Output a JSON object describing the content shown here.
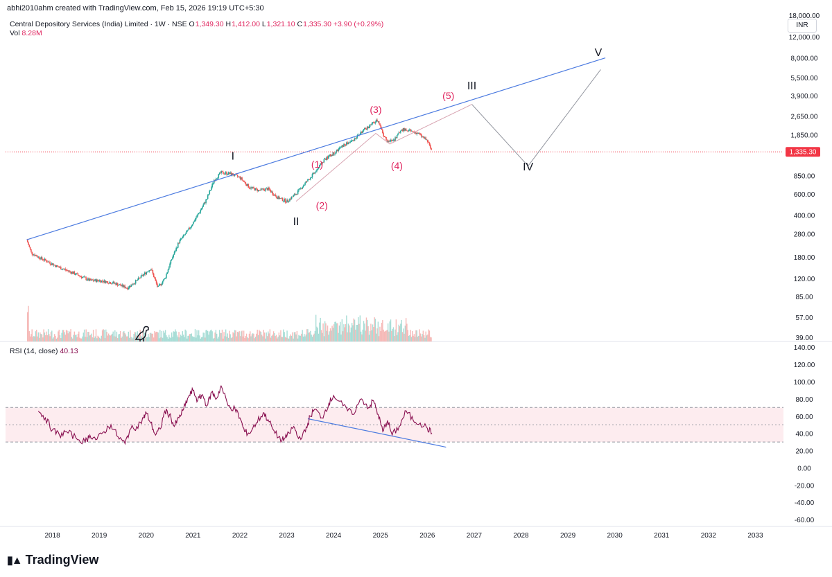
{
  "header": {
    "credit": "abhi2010ahm created with TradingView.com, Feb 15, 2026 19:19 UTC+5:30",
    "symbol": "Central Depository Services (India) Limited · 1W · NSE",
    "ohlc": [
      {
        "label": "O",
        "value": "1,349.30"
      },
      {
        "label": "H",
        "value": "1,412.00"
      },
      {
        "label": "L",
        "value": "1,321.10"
      },
      {
        "label": "C",
        "value": "1,335.30"
      }
    ],
    "change": "+3.90 (+0.29%)",
    "vol_label": "Vol",
    "vol_value": "8.28M",
    "currency": "INR",
    "last_price_badge": "1,335.30"
  },
  "rsi": {
    "label": "RSI (14, close)",
    "value": "40.13"
  },
  "branding": {
    "logo": "TradingView"
  },
  "colors": {
    "up": "#26a69a",
    "down": "#ef5350",
    "trendline": "#4c7be0",
    "rsi_line": "#880e4f",
    "wave_labels": "#e0245e",
    "price_badge": "#f23645"
  },
  "chart_data": [
    {
      "type": "line",
      "title": "",
      "y_scale": "log",
      "ylim": [
        36,
        19000
      ],
      "xlim": [
        2017.0,
        2033.6
      ],
      "y_tick_labels": [
        "39.00",
        "57.00",
        "85.00",
        "120.00",
        "180.00",
        "280.00",
        "400.00",
        "600.00",
        "850.00",
        "1,850.00",
        "2,650.00",
        "3,900.00",
        "5,500.00",
        "8,000.00",
        "12,000.00",
        "18,000.00"
      ],
      "x_tick_labels": [
        "2018",
        "2019",
        "2020",
        "2021",
        "2022",
        "2023",
        "2024",
        "2025",
        "2026",
        "2027",
        "2028",
        "2029",
        "2030",
        "2031",
        "2032",
        "2033"
      ],
      "series": [
        {
          "x": [
            2017.45,
            2017.55,
            2017.7,
            2017.9,
            2018.1,
            2018.3,
            2018.5,
            2018.8,
            2019.0,
            2019.3,
            2019.6,
            2019.8,
            2020.1,
            2020.25,
            2020.4,
            2020.55,
            2020.7,
            2020.9,
            2021.1,
            2021.3,
            2021.45,
            2021.6,
            2021.8,
            2022.0,
            2022.2,
            2022.4,
            2022.6,
            2022.8,
            2023.0,
            2023.2,
            2023.4,
            2023.6,
            2023.8,
            2024.0,
            2024.2,
            2024.4,
            2024.6,
            2024.8,
            2024.95,
            2025.05,
            2025.15,
            2025.3,
            2025.45,
            2025.6,
            2025.8,
            2026.0,
            2026.1
          ],
          "y": [
            250,
            195,
            180,
            165,
            150,
            140,
            130,
            115,
            115,
            110,
            100,
            115,
            145,
            100,
            120,
            175,
            240,
            300,
            400,
            550,
            780,
            900,
            880,
            820,
            680,
            640,
            660,
            560,
            520,
            600,
            740,
            900,
            1150,
            1300,
            1500,
            1650,
            1950,
            2250,
            2450,
            1900,
            1600,
            1700,
            2050,
            2000,
            1900,
            1650,
            1335
          ]
        }
      ],
      "annotations": [
        {
          "text": "I",
          "x": 2021.85,
          "y": 1150
        },
        {
          "text": "II",
          "x": 2023.2,
          "y": 330
        },
        {
          "text": "III",
          "x": 2026.95,
          "y": 4400
        },
        {
          "text": "IV",
          "x": 2028.15,
          "y": 940
        },
        {
          "text": "V",
          "x": 2029.65,
          "y": 8300
        },
        {
          "text": "(1)",
          "x": 2023.65,
          "y": 990
        },
        {
          "text": "(2)",
          "x": 2023.75,
          "y": 450
        },
        {
          "text": "(3)",
          "x": 2024.9,
          "y": 2800
        },
        {
          "text": "(4)",
          "x": 2025.35,
          "y": 960
        },
        {
          "text": "(5)",
          "x": 2026.45,
          "y": 3650
        }
      ]
    },
    {
      "type": "line",
      "title": "",
      "ylim": [
        -68,
        145
      ],
      "y_tick_labels": [
        "-60.00",
        "-40.00",
        "-20.00",
        "0.00",
        "20.00",
        "40.00",
        "60.00",
        "80.00",
        "100.00",
        "120.00",
        "140.00"
      ],
      "series": [
        {
          "x": [
            2017.7,
            2017.85,
            2018.0,
            2018.15,
            2018.3,
            2018.5,
            2018.7,
            2018.8,
            2018.95,
            2019.1,
            2019.25,
            2019.4,
            2019.55,
            2019.65,
            2019.8,
            2019.95,
            2020.0,
            2020.1,
            2020.2,
            2020.3,
            2020.4,
            2020.5,
            2020.6,
            2020.7,
            2020.8,
            2020.9,
            2021.0,
            2021.1,
            2021.2,
            2021.3,
            2021.4,
            2021.5,
            2021.6,
            2021.75,
            2021.9,
            2022.0,
            2022.1,
            2022.2,
            2022.35,
            2022.5,
            2022.6,
            2022.75,
            2022.9,
            2023.0,
            2023.15,
            2023.25,
            2023.4,
            2023.5,
            2023.6,
            2023.75,
            2023.9,
            2024.0,
            2024.2,
            2024.4,
            2024.6,
            2024.75,
            2024.85,
            2024.95,
            2025.05,
            2025.15,
            2025.25,
            2025.4,
            2025.55,
            2025.7,
            2025.85,
            2026.0,
            2026.1
          ],
          "y": [
            66,
            58,
            44,
            38,
            42,
            35,
            30,
            38,
            33,
            42,
            50,
            36,
            28,
            44,
            48,
            58,
            64,
            52,
            38,
            45,
            66,
            62,
            48,
            58,
            68,
            82,
            90,
            78,
            85,
            72,
            88,
            80,
            95,
            72,
            68,
            58,
            42,
            40,
            52,
            64,
            56,
            40,
            32,
            36,
            48,
            34,
            42,
            60,
            68,
            58,
            75,
            84,
            72,
            62,
            80,
            70,
            78,
            62,
            42,
            55,
            38,
            48,
            66,
            55,
            52,
            46,
            40
          ]
        }
      ],
      "reference_lines": [
        70,
        50,
        30
      ]
    }
  ]
}
